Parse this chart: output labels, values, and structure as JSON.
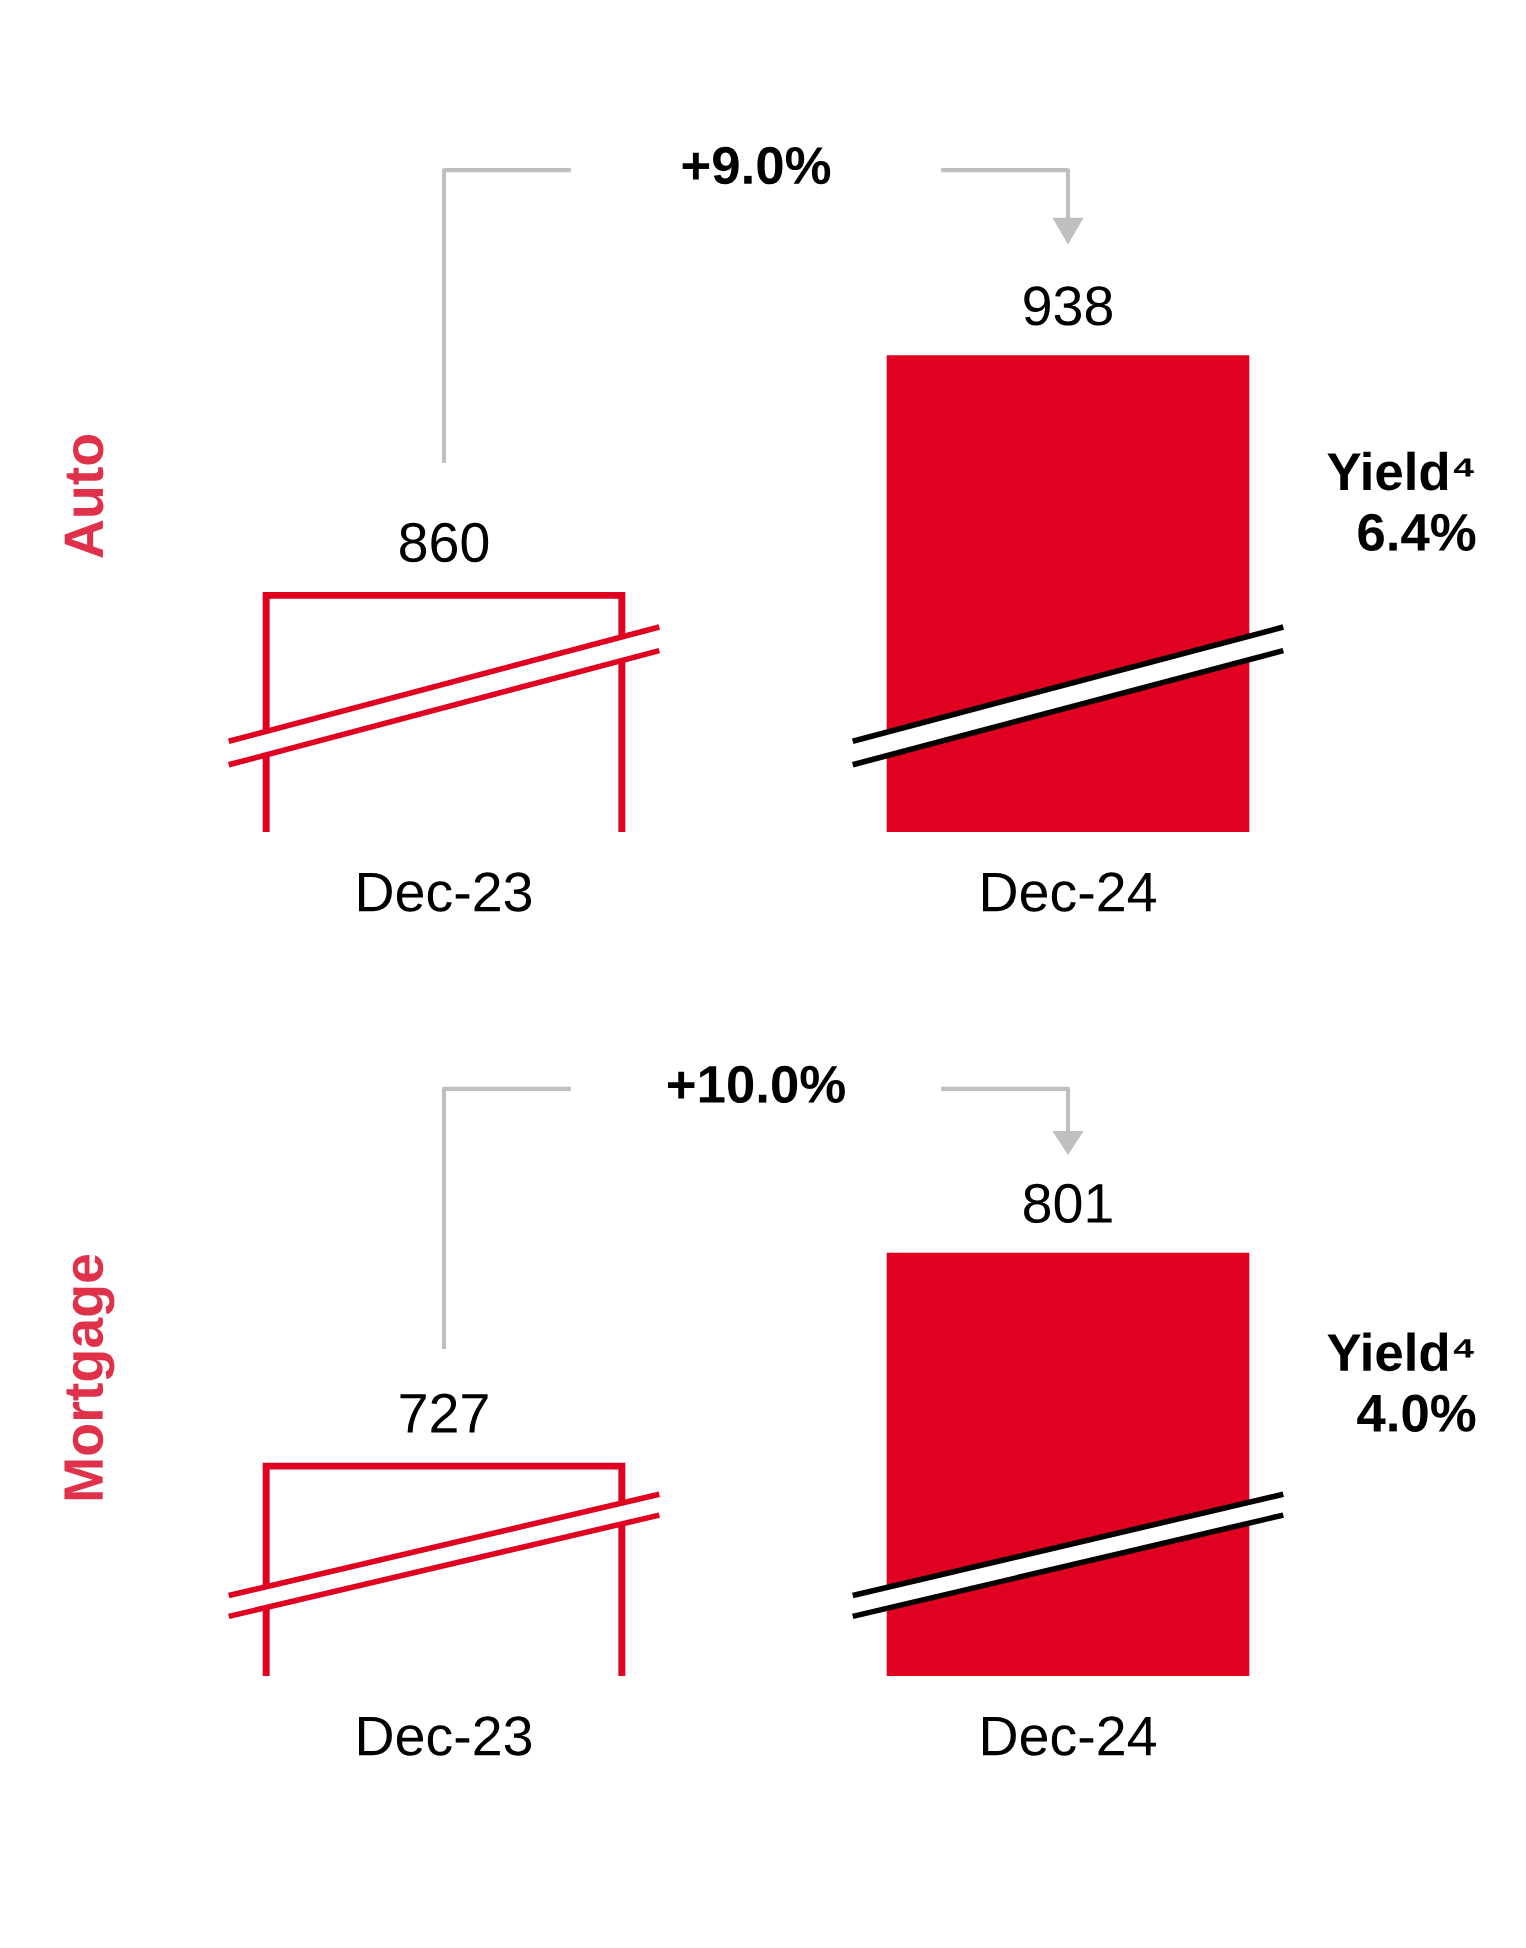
{
  "chart_data": [
    {
      "type": "bar",
      "ylabel": "Auto",
      "categories": [
        "Dec-23",
        "Dec-24"
      ],
      "values": [
        860,
        938
      ],
      "colors": [
        "#ffffff",
        "#e0001f"
      ],
      "data_labels": true,
      "annotations": [
        "+9.0%",
        "Yield⁴\n6.4%"
      ]
    },
    {
      "type": "bar",
      "ylabel": "Mortgage",
      "categories": [
        "Dec-23",
        "Dec-24"
      ],
      "values": [
        727,
        801
      ],
      "colors": [
        "#ffffff",
        "#e0001f"
      ],
      "data_labels": true,
      "annotations": [
        "+10.0%",
        "Yield⁴\n4.0%"
      ]
    }
  ]
}
